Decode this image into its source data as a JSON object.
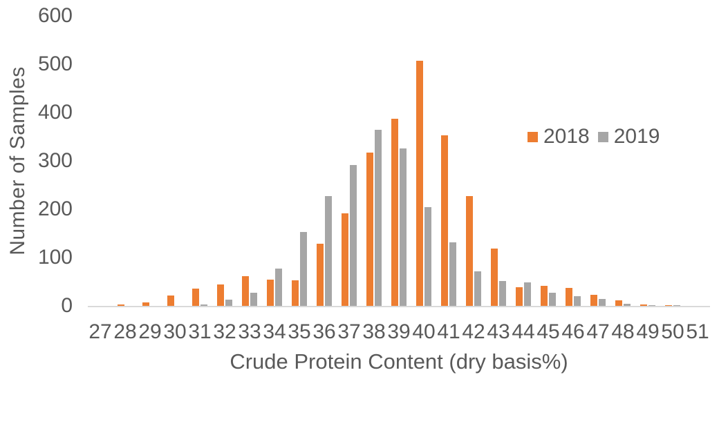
{
  "chart_data": {
    "type": "bar",
    "title": "",
    "xlabel": "Crude Protein Content (dry basis%)",
    "ylabel": "Number of Samples",
    "categories": [
      27,
      28,
      29,
      30,
      31,
      32,
      33,
      34,
      35,
      36,
      37,
      38,
      39,
      40,
      41,
      42,
      43,
      44,
      45,
      46,
      47,
      48,
      49,
      50,
      51
    ],
    "series": [
      {
        "name": "2018",
        "color": "#ED7D31",
        "values": [
          0,
          3,
          7,
          21,
          36,
          44,
          62,
          54,
          53,
          129,
          192,
          317,
          387,
          507,
          353,
          227,
          118,
          39,
          41,
          37,
          23,
          12,
          3,
          2,
          0
        ]
      },
      {
        "name": "2019",
        "color": "#A6A6A6",
        "values": [
          0,
          0,
          0,
          0,
          3,
          13,
          27,
          77,
          153,
          227,
          292,
          365,
          326,
          205,
          132,
          71,
          51,
          49,
          27,
          20,
          15,
          5,
          2,
          1,
          0
        ]
      }
    ],
    "y_ticks": [
      0,
      100,
      200,
      300,
      400,
      500,
      600
    ],
    "ylim": [
      0,
      600
    ],
    "grid": false,
    "legend_position": "inside-top-right"
  },
  "style": {
    "text_color": "#595959",
    "axis_line_color": "#D9D9D9",
    "background": "#FFFFFF"
  }
}
